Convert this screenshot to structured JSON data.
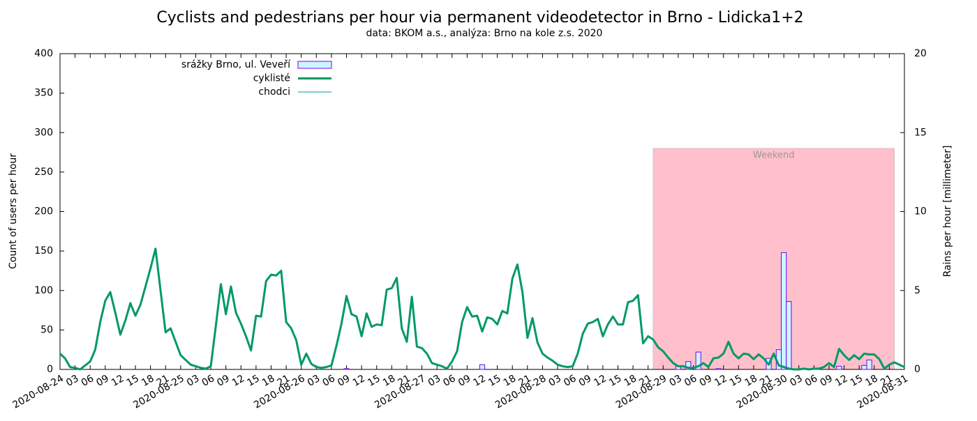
{
  "chart_data": {
    "type": "line",
    "title": "Cyclists and pedestrians per hour via permanent videodetector in Brno - Lidicka1+2",
    "subtitle": "data: BKOM a.s., analýza: Brno na kole z.s. 2020",
    "ylabel": "Count of users per hour",
    "y2label": "Rains per hour [millimeter]",
    "legend": "top-left",
    "xlim": [
      0,
      168
    ],
    "ylim": [
      0,
      400
    ],
    "yticks": [
      0,
      50,
      100,
      150,
      200,
      250,
      300,
      350,
      400
    ],
    "y2lim": [
      0,
      20
    ],
    "y2ticks": [
      0,
      5,
      10,
      15,
      20
    ],
    "xticks": [
      {
        "value": 0,
        "label": "2020-08-24"
      },
      {
        "value": 3,
        "label": "03"
      },
      {
        "value": 6,
        "label": "06"
      },
      {
        "value": 9,
        "label": "09"
      },
      {
        "value": 12,
        "label": "12"
      },
      {
        "value": 15,
        "label": "15"
      },
      {
        "value": 18,
        "label": "18"
      },
      {
        "value": 21,
        "label": "21"
      },
      {
        "value": 24,
        "label": "2020-08-25"
      },
      {
        "value": 27,
        "label": "03"
      },
      {
        "value": 30,
        "label": "06"
      },
      {
        "value": 33,
        "label": "09"
      },
      {
        "value": 36,
        "label": "12"
      },
      {
        "value": 39,
        "label": "15"
      },
      {
        "value": 42,
        "label": "18"
      },
      {
        "value": 45,
        "label": "21"
      },
      {
        "value": 48,
        "label": "2020-08-26"
      },
      {
        "value": 51,
        "label": "03"
      },
      {
        "value": 54,
        "label": "06"
      },
      {
        "value": 57,
        "label": "09"
      },
      {
        "value": 60,
        "label": "12"
      },
      {
        "value": 63,
        "label": "15"
      },
      {
        "value": 66,
        "label": "18"
      },
      {
        "value": 69,
        "label": "21"
      },
      {
        "value": 72,
        "label": "2020-08-27"
      },
      {
        "value": 75,
        "label": "03"
      },
      {
        "value": 78,
        "label": "06"
      },
      {
        "value": 81,
        "label": "09"
      },
      {
        "value": 84,
        "label": "12"
      },
      {
        "value": 87,
        "label": "15"
      },
      {
        "value": 90,
        "label": "18"
      },
      {
        "value": 93,
        "label": "21"
      },
      {
        "value": 96,
        "label": "2020-08-28"
      },
      {
        "value": 99,
        "label": "03"
      },
      {
        "value": 102,
        "label": "06"
      },
      {
        "value": 105,
        "label": "09"
      },
      {
        "value": 108,
        "label": "12"
      },
      {
        "value": 111,
        "label": "15"
      },
      {
        "value": 114,
        "label": "18"
      },
      {
        "value": 117,
        "label": "21"
      },
      {
        "value": 120,
        "label": "2020-08-29"
      },
      {
        "value": 123,
        "label": "03"
      },
      {
        "value": 126,
        "label": "06"
      },
      {
        "value": 129,
        "label": "09"
      },
      {
        "value": 132,
        "label": "12"
      },
      {
        "value": 135,
        "label": "15"
      },
      {
        "value": 138,
        "label": "18"
      },
      {
        "value": 141,
        "label": "21"
      },
      {
        "value": 144,
        "label": "2020-08-30"
      },
      {
        "value": 147,
        "label": "03"
      },
      {
        "value": 150,
        "label": "06"
      },
      {
        "value": 153,
        "label": "09"
      },
      {
        "value": 156,
        "label": "12"
      },
      {
        "value": 159,
        "label": "15"
      },
      {
        "value": 162,
        "label": "18"
      },
      {
        "value": 165,
        "label": "21"
      },
      {
        "value": 168,
        "label": "2020-08-31"
      }
    ],
    "weekend": {
      "label": "Weekend",
      "xlim": [
        118,
        166
      ],
      "top": 280,
      "color": "#ffc0cb"
    },
    "x": [
      0,
      1,
      2,
      3,
      4,
      5,
      6,
      7,
      8,
      9,
      10,
      11,
      12,
      13,
      14,
      15,
      16,
      17,
      18,
      19,
      20,
      21,
      22,
      23,
      24,
      25,
      26,
      27,
      28,
      29,
      30,
      31,
      32,
      33,
      34,
      35,
      36,
      37,
      38,
      39,
      40,
      41,
      42,
      43,
      44,
      45,
      46,
      47,
      48,
      49,
      50,
      51,
      52,
      53,
      54,
      55,
      56,
      57,
      58,
      59,
      60,
      61,
      62,
      63,
      64,
      65,
      66,
      67,
      68,
      69,
      70,
      71,
      72,
      73,
      74,
      75,
      76,
      77,
      78,
      79,
      80,
      81,
      82,
      83,
      84,
      85,
      86,
      87,
      88,
      89,
      90,
      91,
      92,
      93,
      94,
      95,
      96,
      97,
      98,
      99,
      100,
      101,
      102,
      103,
      104,
      105,
      106,
      107,
      108,
      109,
      110,
      111,
      112,
      113,
      114,
      115,
      116,
      117,
      118,
      119,
      120,
      121,
      122,
      123,
      124,
      125,
      126,
      127,
      128,
      129,
      130,
      131,
      132,
      133,
      134,
      135,
      136,
      137,
      138,
      139,
      140,
      141,
      142,
      143,
      144,
      145,
      146,
      147,
      148,
      149,
      150,
      151,
      152,
      153,
      154,
      155,
      156,
      157,
      158,
      159,
      160,
      161,
      162,
      163,
      164,
      165,
      166,
      167,
      168
    ],
    "series": [
      {
        "name": "srážky Brno, ul. Veveří",
        "color": "#ccf6ff",
        "stroke": "#7700ee",
        "axis": "y2",
        "kind": "bar",
        "x": [
          57,
          84,
          123,
          125,
          127,
          131,
          141,
          143,
          144,
          145,
          155,
          160,
          161
        ],
        "values": [
          0.05,
          0.3,
          0.2,
          0.5,
          1.1,
          0.05,
          0.7,
          1.25,
          7.4,
          4.3,
          0.2,
          0.25,
          0.6
        ]
      },
      {
        "name": "cyklisté",
        "color": "#009966",
        "width": 3,
        "values": [
          20,
          14,
          3,
          2,
          0,
          5,
          10,
          25,
          60,
          87,
          98,
          72,
          44,
          62,
          84,
          68,
          82,
          105,
          128,
          153,
          100,
          47,
          52,
          35,
          18,
          12,
          6,
          4,
          2,
          1,
          4,
          55,
          108,
          70,
          105,
          72,
          58,
          42,
          24,
          68,
          67,
          112,
          120,
          119,
          125,
          60,
          52,
          37,
          6,
          20,
          7,
          3,
          2,
          3,
          5,
          30,
          58,
          93,
          70,
          67,
          42,
          71,
          54,
          57,
          56,
          101,
          103,
          116,
          52,
          35,
          92,
          29,
          27,
          20,
          8,
          6,
          4,
          1,
          10,
          23,
          60,
          79,
          67,
          68,
          48,
          66,
          64,
          57,
          74,
          71,
          115,
          133,
          98,
          40,
          65,
          34,
          20,
          15,
          11,
          6,
          4,
          3,
          4,
          20,
          45,
          58,
          60,
          64,
          42,
          57,
          67,
          57,
          57,
          85,
          87,
          94,
          33,
          42,
          38,
          28,
          23,
          15,
          8,
          4,
          4,
          2,
          2,
          4,
          8,
          3,
          14,
          15,
          20,
          35,
          20,
          14,
          20,
          19,
          13,
          19,
          14,
          6,
          20,
          5,
          3,
          1,
          0,
          0,
          1,
          0,
          1,
          1,
          3,
          8,
          3,
          26,
          18,
          12,
          18,
          13,
          20,
          19,
          19,
          13,
          1,
          6,
          9,
          6,
          3
        ]
      },
      {
        "name": "chodci",
        "color": "#009999",
        "width": 1
      }
    ]
  }
}
